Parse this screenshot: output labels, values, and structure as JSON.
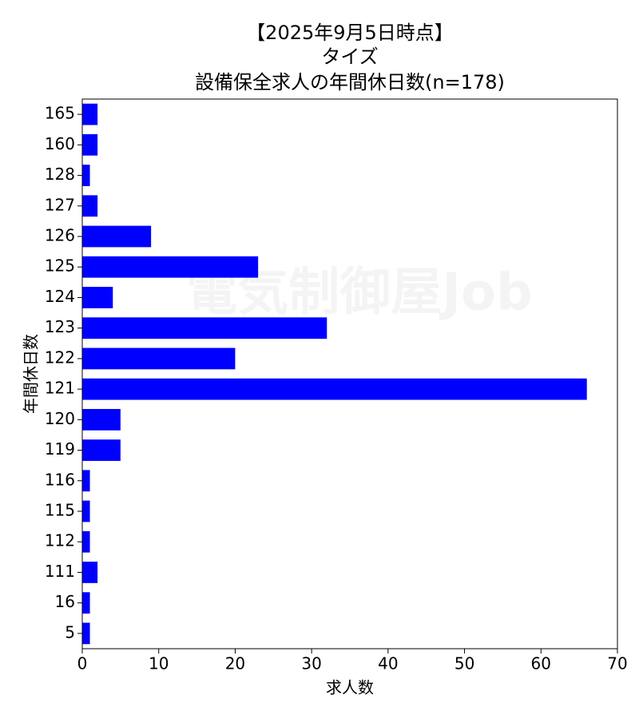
{
  "chart_data": {
    "type": "barh",
    "title": [
      "【2025年9月5日時点】",
      "タイズ",
      "設備保全求人の年間休日数(n=178)"
    ],
    "xlabel": "求人数",
    "ylabel": "年間休日数",
    "watermark": "電気制御屋Job",
    "categories": [
      "165",
      "160",
      "128",
      "127",
      "126",
      "125",
      "124",
      "123",
      "122",
      "121",
      "120",
      "119",
      "116",
      "115",
      "112",
      "111",
      "16",
      "5"
    ],
    "values": [
      2,
      2,
      1,
      2,
      9,
      23,
      4,
      32,
      20,
      66,
      5,
      5,
      1,
      1,
      1,
      2,
      1,
      1
    ],
    "color": "#0000ff",
    "xlim": [
      0,
      70
    ],
    "xticks": [
      0,
      10,
      20,
      30,
      40,
      50,
      60,
      70
    ],
    "grid": false
  }
}
